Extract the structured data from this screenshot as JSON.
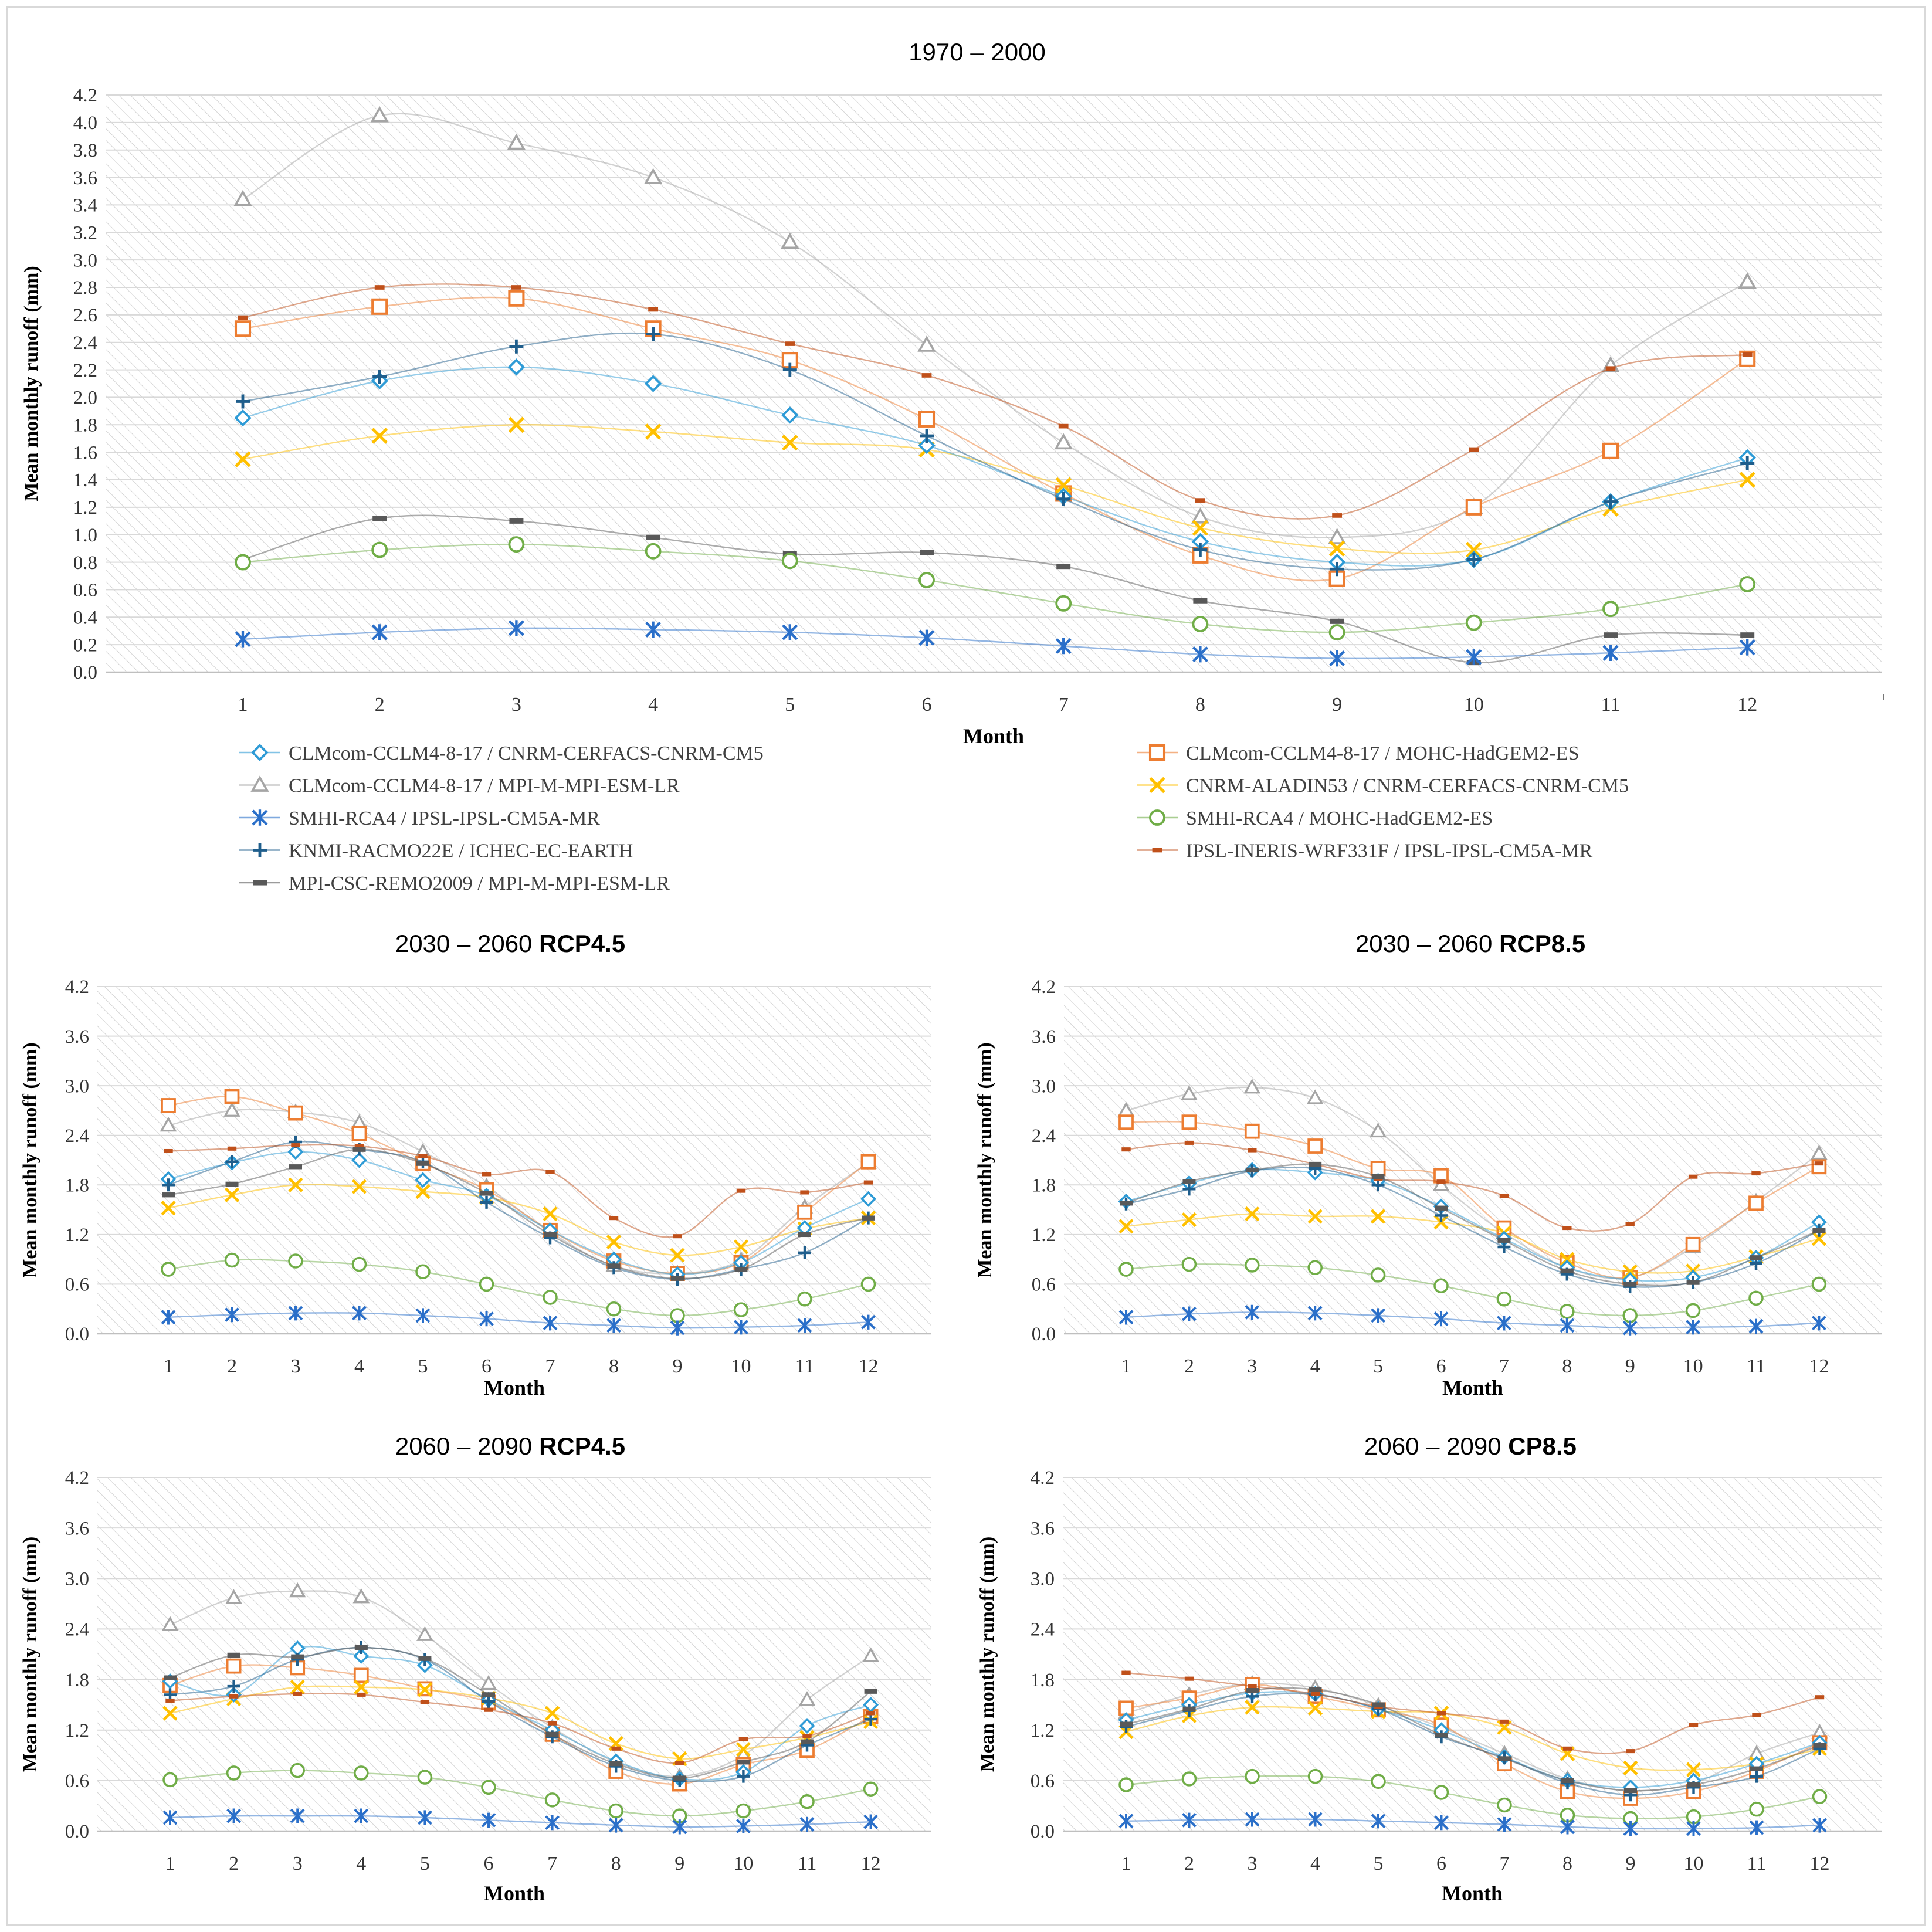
{
  "colors": {
    "ccl_cnrm": "#2e9bd6",
    "ccl_mohc": "#ed7d31",
    "ccl_mpi": "#a5a5a5",
    "aladin": "#ffc000",
    "rca_ipsl": "#2a6fc9",
    "rca_mohc": "#70ad47",
    "racmo": "#1f5e8c",
    "wrf": "#c0501a",
    "remo": "#595959"
  },
  "legend": {
    "ccl_cnrm": "CLMcom-CCLM4-8-17 / CNRM-CERFACS-CNRM-CM5",
    "ccl_mohc": "CLMcom-CCLM4-8-17 / MOHC-HadGEM2-ES",
    "ccl_mpi": "CLMcom-CCLM4-8-17 / MPI-M-MPI-ESM-LR",
    "aladin": "CNRM-ALADIN53 / CNRM-CERFACS-CNRM-CM5",
    "rca_ipsl": "SMHI-RCA4 / IPSL-IPSL-CM5A-MR",
    "rca_mohc": "SMHI-RCA4 / MOHC-HadGEM2-ES",
    "racmo": "KNMI-RACMO22E / ICHEC-EC-EARTH",
    "wrf": "IPSL-INERIS-WRF331F / IPSL-IPSL-CM5A-MR",
    "remo": "MPI-CSC-REMO2009 / MPI-M-MPI-ESM-LR"
  },
  "chart_data": [
    {
      "type": "line",
      "title": "1970 – 2000",
      "title_bold": "",
      "xlabel": "Month",
      "ylabel": "Mean monthly runoff (mm)",
      "ylim": [
        0,
        4.2
      ],
      "yticks": [
        "0.0",
        "0.2",
        "0.4",
        "0.6",
        "0.8",
        "1.0",
        "1.2",
        "1.4",
        "1.6",
        "1.8",
        "2.0",
        "2.2",
        "2.4",
        "2.6",
        "2.8",
        "3.0",
        "3.2",
        "3.4",
        "3.6",
        "3.8",
        "4.0",
        "4.2"
      ],
      "x": [
        1,
        2,
        3,
        4,
        5,
        6,
        7,
        8,
        9,
        10,
        11,
        12
      ],
      "series": [
        {
          "key": "ccl_cnrm",
          "values": [
            1.85,
            2.12,
            2.22,
            2.1,
            1.87,
            1.65,
            1.28,
            0.95,
            0.8,
            0.82,
            1.24,
            1.56
          ]
        },
        {
          "key": "ccl_mohc",
          "values": [
            2.5,
            2.66,
            2.72,
            2.5,
            2.27,
            1.84,
            1.3,
            0.85,
            0.68,
            1.2,
            1.61,
            2.28
          ]
        },
        {
          "key": "ccl_mpi",
          "values": [
            3.44,
            4.05,
            3.85,
            3.6,
            3.13,
            2.38,
            1.67,
            1.13,
            0.98,
            1.2,
            2.23,
            2.84
          ]
        },
        {
          "key": "aladin",
          "values": [
            1.55,
            1.72,
            1.8,
            1.75,
            1.67,
            1.62,
            1.36,
            1.05,
            0.9,
            0.89,
            1.19,
            1.4
          ]
        },
        {
          "key": "rca_ipsl",
          "values": [
            0.24,
            0.29,
            0.32,
            0.31,
            0.29,
            0.25,
            0.19,
            0.13,
            0.1,
            0.11,
            0.14,
            0.18
          ]
        },
        {
          "key": "rca_mohc",
          "values": [
            0.8,
            0.89,
            0.93,
            0.88,
            0.81,
            0.67,
            0.5,
            0.35,
            0.29,
            0.36,
            0.46,
            0.64
          ]
        },
        {
          "key": "racmo",
          "values": [
            1.97,
            2.15,
            2.37,
            2.46,
            2.2,
            1.72,
            1.26,
            0.89,
            0.75,
            0.82,
            1.24,
            1.52
          ]
        },
        {
          "key": "wrf",
          "values": [
            2.58,
            2.8,
            2.8,
            2.64,
            2.39,
            2.16,
            1.79,
            1.25,
            1.14,
            1.62,
            2.21,
            2.31
          ]
        },
        {
          "key": "remo",
          "values": [
            0.82,
            1.12,
            1.1,
            0.98,
            0.86,
            0.87,
            0.77,
            0.52,
            0.37,
            0.07,
            0.27,
            0.27
          ]
        }
      ]
    },
    {
      "type": "line",
      "title": "2030 – 2060 ",
      "title_bold": "RCP4.5",
      "xlabel": "Month",
      "ylabel": "Mean monthly runoff (mm)",
      "ylim": [
        0,
        4.2
      ],
      "yticks": [
        "0.0",
        "0.6",
        "1.2",
        "1.8",
        "2.4",
        "3.0",
        "3.6",
        "4.2"
      ],
      "x": [
        1,
        2,
        3,
        4,
        5,
        6,
        7,
        8,
        9,
        10,
        11,
        12
      ],
      "series": [
        {
          "key": "ccl_cnrm",
          "values": [
            1.87,
            2.07,
            2.2,
            2.1,
            1.86,
            1.67,
            1.25,
            0.9,
            0.72,
            0.86,
            1.28,
            1.63
          ]
        },
        {
          "key": "ccl_mohc",
          "values": [
            2.76,
            2.87,
            2.67,
            2.42,
            2.06,
            1.74,
            1.25,
            0.88,
            0.73,
            0.86,
            1.47,
            2.08
          ]
        },
        {
          "key": "ccl_mpi",
          "values": [
            2.52,
            2.7,
            2.68,
            2.55,
            2.2,
            1.78,
            1.23,
            0.82,
            0.73,
            0.89,
            1.53,
            2.07
          ]
        },
        {
          "key": "aladin",
          "values": [
            1.52,
            1.68,
            1.8,
            1.78,
            1.72,
            1.65,
            1.45,
            1.11,
            0.95,
            1.05,
            1.27,
            1.4
          ]
        },
        {
          "key": "rca_ipsl",
          "values": [
            0.2,
            0.23,
            0.25,
            0.25,
            0.22,
            0.18,
            0.13,
            0.1,
            0.07,
            0.08,
            0.1,
            0.14
          ]
        },
        {
          "key": "rca_mohc",
          "values": [
            0.78,
            0.89,
            0.88,
            0.84,
            0.75,
            0.6,
            0.44,
            0.3,
            0.22,
            0.29,
            0.42,
            0.6
          ]
        },
        {
          "key": "racmo",
          "values": [
            1.8,
            2.08,
            2.32,
            2.23,
            2.08,
            1.59,
            1.16,
            0.8,
            0.66,
            0.78,
            0.98,
            1.4
          ]
        },
        {
          "key": "wrf",
          "values": [
            2.21,
            2.24,
            2.28,
            2.27,
            2.15,
            1.93,
            1.96,
            1.4,
            1.18,
            1.73,
            1.71,
            1.83
          ]
        },
        {
          "key": "remo",
          "values": [
            1.68,
            1.81,
            2.02,
            2.23,
            2.06,
            1.7,
            1.2,
            0.82,
            0.67,
            0.78,
            1.2,
            1.4
          ]
        }
      ]
    },
    {
      "type": "line",
      "title": "2030 – 2060 ",
      "title_bold": "RCP8.5",
      "xlabel": "Month",
      "ylabel": "Mean monthly runoff (mm)",
      "ylim": [
        0,
        4.2
      ],
      "yticks": [
        "0.0",
        "0.6",
        "1.2",
        "1.8",
        "2.4",
        "3.0",
        "3.6",
        "4.2"
      ],
      "x": [
        1,
        2,
        3,
        4,
        5,
        6,
        7,
        8,
        9,
        10,
        11,
        12
      ],
      "series": [
        {
          "key": "ccl_cnrm",
          "values": [
            1.6,
            1.82,
            1.98,
            1.95,
            1.85,
            1.54,
            1.15,
            0.8,
            0.65,
            0.68,
            0.92,
            1.35
          ]
        },
        {
          "key": "ccl_mohc",
          "values": [
            2.56,
            2.56,
            2.45,
            2.27,
            2.0,
            1.91,
            1.28,
            0.86,
            0.68,
            1.08,
            1.58,
            2.02
          ]
        },
        {
          "key": "ccl_mpi",
          "values": [
            2.7,
            2.9,
            2.98,
            2.85,
            2.45,
            1.8,
            1.22,
            0.8,
            0.68,
            1.05,
            1.6,
            2.18
          ]
        },
        {
          "key": "aladin",
          "values": [
            1.3,
            1.38,
            1.45,
            1.42,
            1.42,
            1.35,
            1.22,
            0.9,
            0.75,
            0.76,
            0.93,
            1.15
          ]
        },
        {
          "key": "rca_ipsl",
          "values": [
            0.2,
            0.24,
            0.26,
            0.25,
            0.22,
            0.18,
            0.13,
            0.1,
            0.07,
            0.08,
            0.09,
            0.13
          ]
        },
        {
          "key": "rca_mohc",
          "values": [
            0.78,
            0.84,
            0.83,
            0.8,
            0.71,
            0.58,
            0.42,
            0.27,
            0.22,
            0.28,
            0.43,
            0.6
          ]
        },
        {
          "key": "racmo",
          "values": [
            1.57,
            1.75,
            1.97,
            2.0,
            1.8,
            1.43,
            1.05,
            0.72,
            0.57,
            0.62,
            0.85,
            1.25
          ]
        },
        {
          "key": "wrf",
          "values": [
            2.23,
            2.31,
            2.22,
            2.05,
            1.87,
            1.84,
            1.67,
            1.28,
            1.33,
            1.9,
            1.94,
            2.06
          ]
        },
        {
          "key": "remo",
          "values": [
            1.58,
            1.84,
            1.98,
            2.05,
            1.9,
            1.52,
            1.13,
            0.76,
            0.6,
            0.62,
            0.92,
            1.25
          ]
        }
      ]
    },
    {
      "type": "line",
      "title": "2060 – 2090 ",
      "title_bold": "RCP4.5",
      "xlabel": "Month",
      "ylabel": "Mean monthly runoff (mm)",
      "ylim": [
        0,
        4.2
      ],
      "yticks": [
        "0.0",
        "0.6",
        "1.2",
        "1.8",
        "2.4",
        "3.0",
        "3.6",
        "4.2"
      ],
      "x": [
        1,
        2,
        3,
        4,
        5,
        6,
        7,
        8,
        9,
        10,
        11,
        12
      ],
      "series": [
        {
          "key": "ccl_cnrm",
          "values": [
            1.78,
            1.62,
            2.17,
            2.08,
            1.97,
            1.56,
            1.2,
            0.83,
            0.62,
            0.7,
            1.25,
            1.5
          ]
        },
        {
          "key": "ccl_mohc",
          "values": [
            1.73,
            1.96,
            1.94,
            1.85,
            1.69,
            1.53,
            1.15,
            0.71,
            0.56,
            0.79,
            0.96,
            1.36
          ]
        },
        {
          "key": "ccl_mpi",
          "values": [
            2.45,
            2.77,
            2.85,
            2.78,
            2.33,
            1.75,
            1.23,
            0.82,
            0.65,
            0.9,
            1.56,
            2.08
          ]
        },
        {
          "key": "aladin",
          "values": [
            1.4,
            1.57,
            1.71,
            1.71,
            1.68,
            1.58,
            1.4,
            1.04,
            0.86,
            0.97,
            1.11,
            1.3
          ]
        },
        {
          "key": "rca_ipsl",
          "values": [
            0.16,
            0.18,
            0.18,
            0.18,
            0.16,
            0.13,
            0.1,
            0.07,
            0.05,
            0.06,
            0.08,
            0.11
          ]
        },
        {
          "key": "rca_mohc",
          "values": [
            0.61,
            0.69,
            0.72,
            0.69,
            0.64,
            0.52,
            0.37,
            0.24,
            0.18,
            0.24,
            0.35,
            0.5
          ]
        },
        {
          "key": "racmo",
          "values": [
            1.62,
            1.72,
            2.04,
            2.18,
            2.04,
            1.54,
            1.12,
            0.77,
            0.6,
            0.65,
            1.02,
            1.33
          ]
        },
        {
          "key": "wrf",
          "values": [
            1.55,
            1.6,
            1.63,
            1.62,
            1.53,
            1.44,
            1.28,
            0.98,
            0.81,
            1.09,
            1.13,
            1.4
          ]
        },
        {
          "key": "remo",
          "values": [
            1.82,
            2.09,
            2.07,
            2.18,
            2.05,
            1.62,
            1.15,
            0.8,
            0.63,
            0.82,
            1.06,
            1.66
          ]
        }
      ]
    },
    {
      "type": "line",
      "title": "2060 – 2090 ",
      "title_bold": "CP8.5",
      "xlabel": "Month",
      "ylabel": "Mean monthly runoff (mm)",
      "ylim": [
        0,
        4.2
      ],
      "yticks": [
        "0.0",
        "0.6",
        "1.2",
        "1.8",
        "2.4",
        "3.0",
        "3.6",
        "4.2"
      ],
      "x": [
        1,
        2,
        3,
        4,
        5,
        6,
        7,
        8,
        9,
        10,
        11,
        12
      ],
      "series": [
        {
          "key": "ccl_cnrm",
          "values": [
            1.32,
            1.5,
            1.64,
            1.63,
            1.45,
            1.2,
            0.88,
            0.6,
            0.52,
            0.6,
            0.8,
            1.05
          ]
        },
        {
          "key": "ccl_mohc",
          "values": [
            1.46,
            1.58,
            1.74,
            1.6,
            1.44,
            1.26,
            0.8,
            0.47,
            0.39,
            0.47,
            0.71,
            1.05
          ]
        },
        {
          "key": "ccl_mpi",
          "values": [
            1.4,
            1.62,
            1.75,
            1.7,
            1.49,
            1.23,
            0.92,
            0.62,
            0.48,
            0.57,
            0.92,
            1.17
          ]
        },
        {
          "key": "aladin",
          "values": [
            1.18,
            1.37,
            1.47,
            1.46,
            1.42,
            1.4,
            1.23,
            0.92,
            0.75,
            0.73,
            0.8,
            0.98
          ]
        },
        {
          "key": "rca_ipsl",
          "values": [
            0.12,
            0.13,
            0.14,
            0.14,
            0.12,
            0.1,
            0.08,
            0.05,
            0.03,
            0.03,
            0.04,
            0.07
          ]
        },
        {
          "key": "rca_mohc",
          "values": [
            0.55,
            0.62,
            0.65,
            0.65,
            0.59,
            0.46,
            0.31,
            0.19,
            0.15,
            0.17,
            0.26,
            0.41
          ]
        },
        {
          "key": "racmo",
          "values": [
            1.24,
            1.43,
            1.6,
            1.62,
            1.45,
            1.12,
            0.87,
            0.57,
            0.43,
            0.52,
            0.65,
            0.98
          ]
        },
        {
          "key": "wrf",
          "values": [
            1.88,
            1.81,
            1.72,
            1.63,
            1.48,
            1.4,
            1.3,
            0.98,
            0.95,
            1.26,
            1.38,
            1.59
          ]
        },
        {
          "key": "remo",
          "values": [
            1.27,
            1.45,
            1.67,
            1.68,
            1.5,
            1.14,
            0.86,
            0.6,
            0.48,
            0.55,
            0.74,
            1.02
          ]
        }
      ]
    }
  ]
}
